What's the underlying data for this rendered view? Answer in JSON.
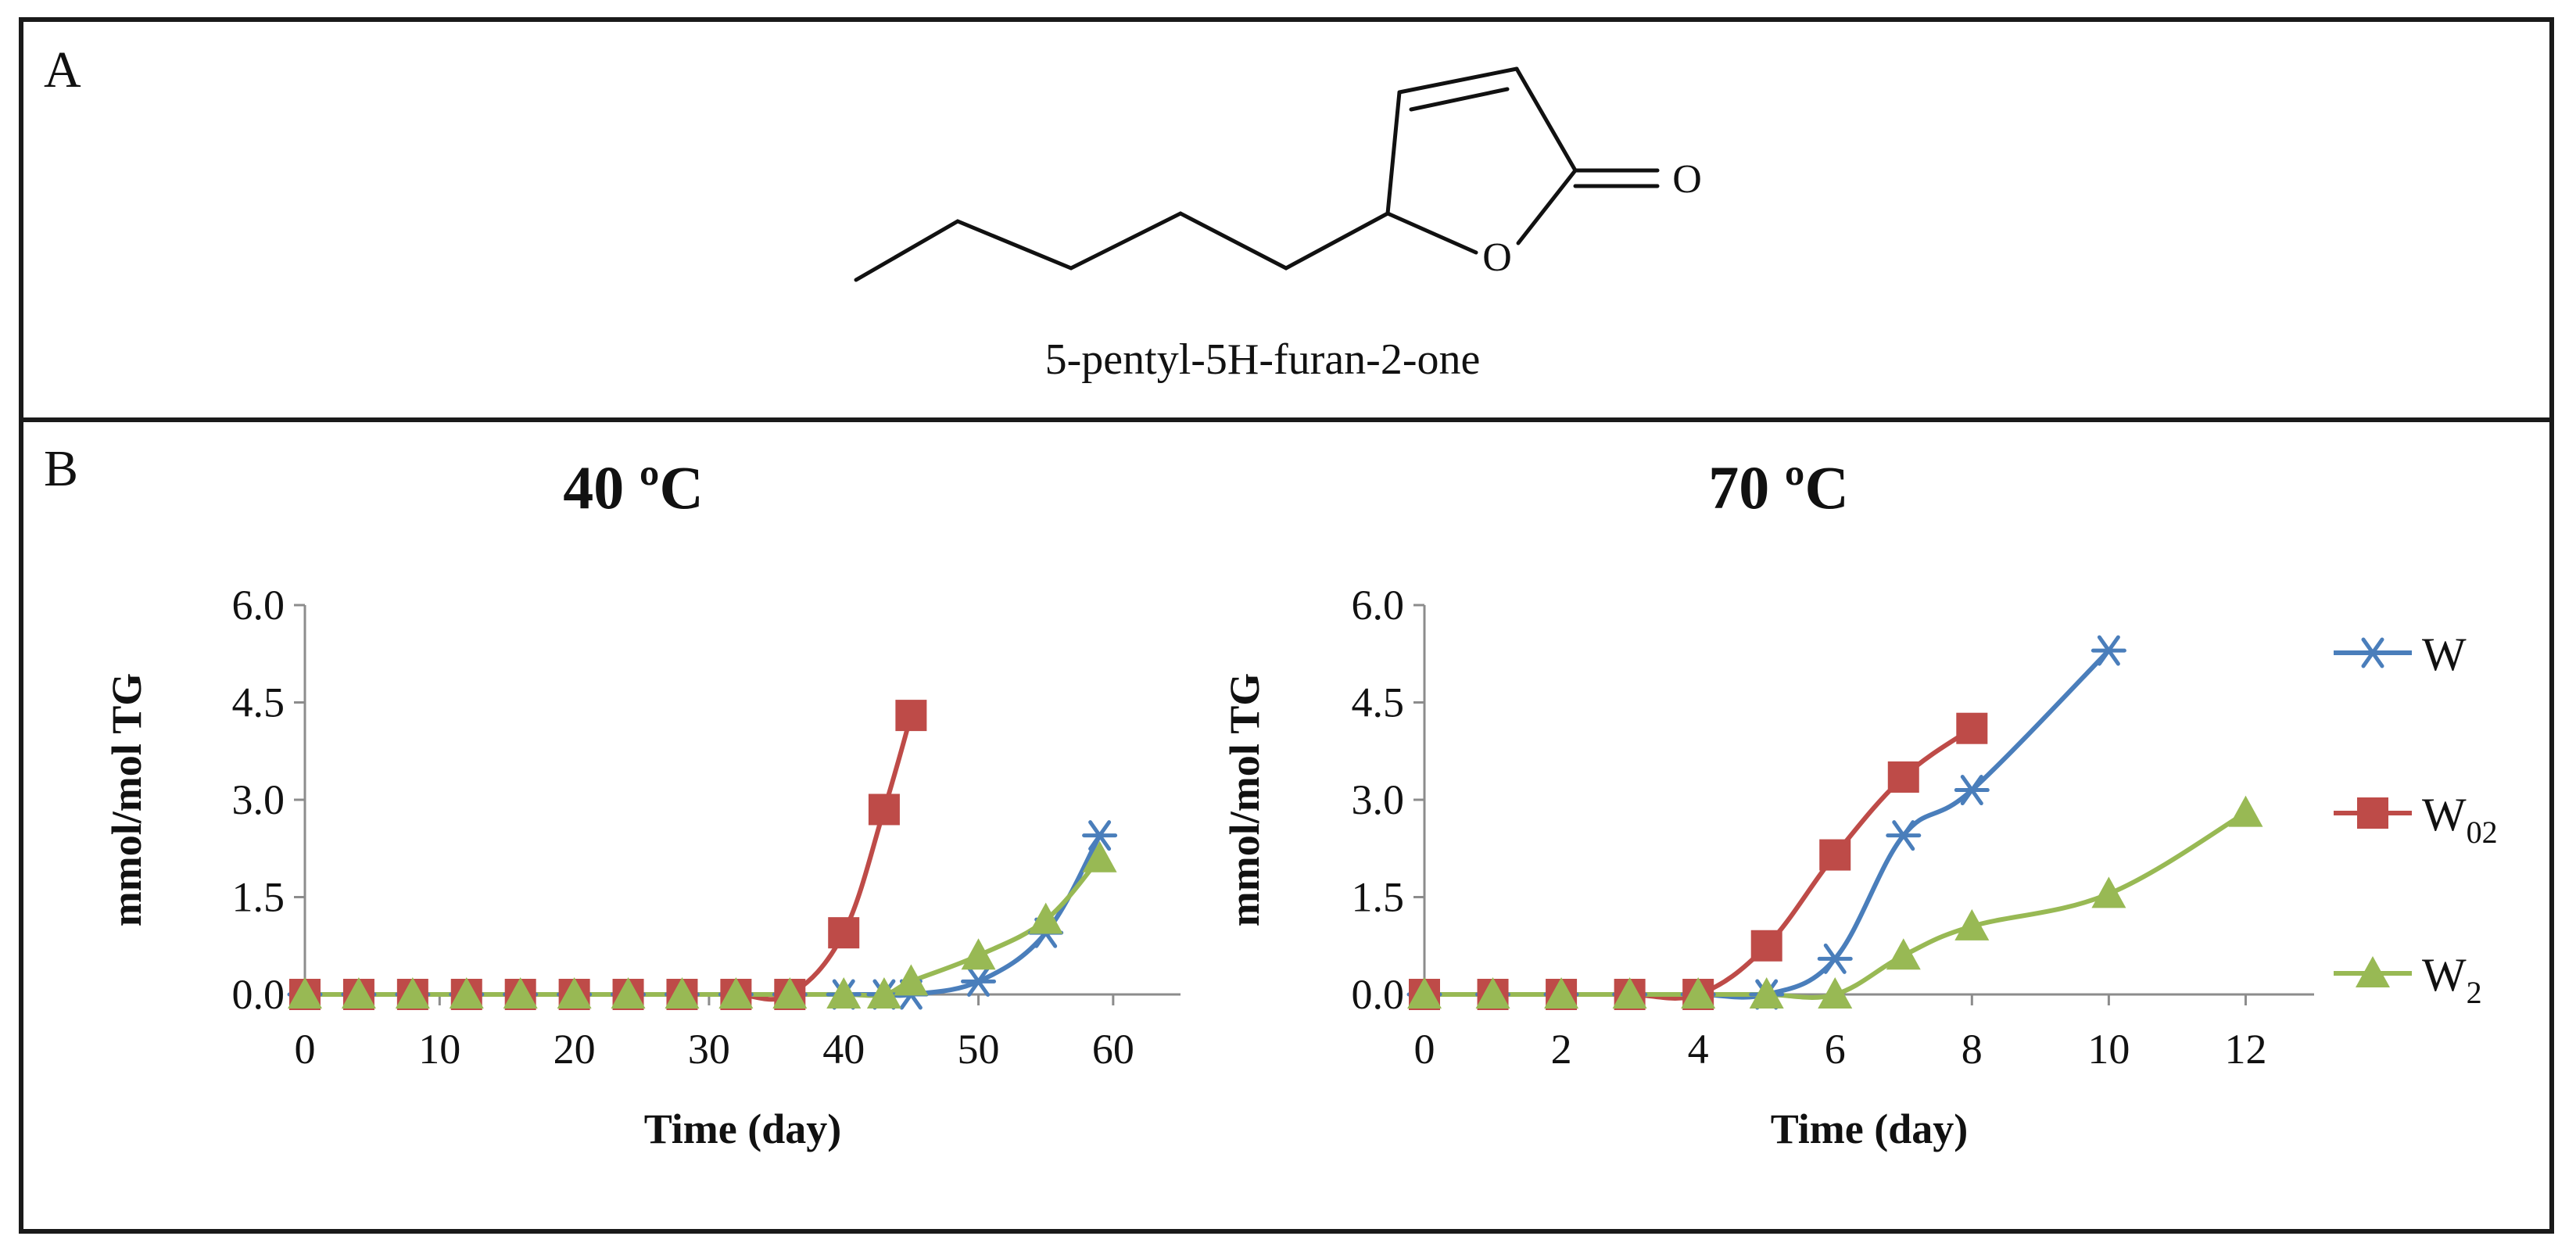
{
  "panel_a": {
    "label": "A",
    "compound_name": "5-pentyl-5H-furan-2-one",
    "atom_labels": [
      "O",
      "O"
    ]
  },
  "panel_b": {
    "label": "B"
  },
  "legend": {
    "entries": [
      {
        "name": "W",
        "sub": "",
        "color": "#4a7ebb",
        "marker": "asterisk"
      },
      {
        "name": "W",
        "sub": "02",
        "color": "#be4b48",
        "marker": "square"
      },
      {
        "name": "W",
        "sub": "2",
        "color": "#98b954",
        "marker": "triangle"
      }
    ]
  },
  "chart_data": [
    {
      "type": "line",
      "title": "40 ºC",
      "xlabel": "Time (day)",
      "ylabel": "mmol/mol TG",
      "xlim": [
        0,
        65
      ],
      "ylim": [
        0,
        6.0
      ],
      "xticks": [
        "0",
        "10",
        "20",
        "30",
        "40",
        "50",
        "60"
      ],
      "xtick_values": [
        0,
        10,
        20,
        30,
        40,
        50,
        60
      ],
      "yticks": [
        "0.0",
        "1.5",
        "3.0",
        "4.5",
        "6.0"
      ],
      "ytick_values": [
        0,
        1.5,
        3.0,
        4.5,
        6.0
      ],
      "series": [
        {
          "name": "W",
          "color": "#4a7ebb",
          "marker": "asterisk",
          "x": [
            0,
            4,
            8,
            12,
            16,
            20,
            24,
            28,
            32,
            36,
            40,
            43,
            45,
            50,
            55,
            59
          ],
          "y": [
            0,
            0,
            0,
            0,
            0,
            0,
            0,
            0,
            0,
            0,
            0,
            0,
            0,
            0.2,
            0.95,
            2.45
          ]
        },
        {
          "name": "W02",
          "color": "#be4b48",
          "marker": "square",
          "x": [
            0,
            4,
            8,
            12,
            16,
            20,
            24,
            28,
            32,
            36,
            40,
            43,
            45
          ],
          "y": [
            0,
            0,
            0,
            0,
            0,
            0,
            0,
            0,
            0,
            0,
            0.95,
            2.85,
            4.3
          ]
        },
        {
          "name": "W2",
          "color": "#98b954",
          "marker": "triangle",
          "x": [
            0,
            4,
            8,
            12,
            16,
            20,
            24,
            28,
            32,
            36,
            40,
            43,
            45,
            50,
            55,
            59
          ],
          "y": [
            0,
            0,
            0,
            0,
            0,
            0,
            0,
            0,
            0,
            0,
            0,
            0,
            0.2,
            0.6,
            1.15,
            2.1
          ]
        }
      ]
    },
    {
      "type": "line",
      "title": "70 ºC",
      "xlabel": "Time (day)",
      "ylabel": "mmol/mol TG",
      "xlim": [
        0,
        13
      ],
      "ylim": [
        0,
        6.0
      ],
      "xticks": [
        "0",
        "2",
        "4",
        "6",
        "8",
        "10",
        "12"
      ],
      "xtick_values": [
        0,
        2,
        4,
        6,
        8,
        10,
        12
      ],
      "yticks": [
        "0.0",
        "1.5",
        "3.0",
        "4.5",
        "6.0"
      ],
      "ytick_values": [
        0,
        1.5,
        3.0,
        4.5,
        6.0
      ],
      "series": [
        {
          "name": "W",
          "color": "#4a7ebb",
          "marker": "asterisk",
          "x": [
            0,
            1,
            2,
            3,
            4,
            5,
            6,
            7,
            8,
            10
          ],
          "y": [
            0,
            0,
            0,
            0,
            0,
            0,
            0.55,
            2.45,
            3.15,
            5.3
          ]
        },
        {
          "name": "W02",
          "color": "#be4b48",
          "marker": "square",
          "x": [
            0,
            1,
            2,
            3,
            4,
            5,
            6,
            7,
            8
          ],
          "y": [
            0,
            0,
            0,
            0,
            0,
            0.75,
            2.15,
            3.35,
            4.1
          ]
        },
        {
          "name": "W2",
          "color": "#98b954",
          "marker": "triangle",
          "x": [
            0,
            1,
            2,
            3,
            4,
            5,
            6,
            7,
            8,
            10,
            12
          ],
          "y": [
            0,
            0,
            0,
            0,
            0,
            0,
            0,
            0.6,
            1.05,
            1.55,
            2.8
          ]
        }
      ]
    }
  ]
}
